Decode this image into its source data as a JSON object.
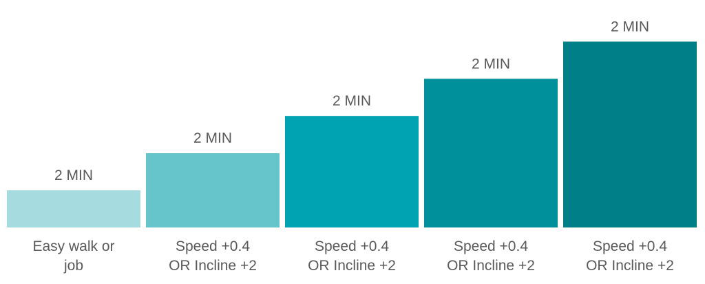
{
  "chart_data": {
    "type": "bar",
    "title": "",
    "xlabel": "",
    "ylabel": "",
    "categories": [
      [
        "Easy walk or",
        "job"
      ],
      [
        "Speed +0.4",
        "OR Incline +2"
      ],
      [
        "Speed +0.4",
        "OR Incline +2"
      ],
      [
        "Speed +0.4",
        "OR Incline +2"
      ],
      [
        "Speed +0.4",
        "OR Incline +2"
      ]
    ],
    "values": [
      1,
      2,
      3,
      4,
      5
    ],
    "data_labels": [
      "2 MIN",
      "2 MIN",
      "2 MIN",
      "2 MIN",
      "2 MIN"
    ],
    "ylim": [
      0,
      5.6
    ],
    "grid": false,
    "colors": [
      "#a6dbdf",
      "#66c5cb",
      "#00a3b2",
      "#00909c",
      "#007f88"
    ]
  }
}
